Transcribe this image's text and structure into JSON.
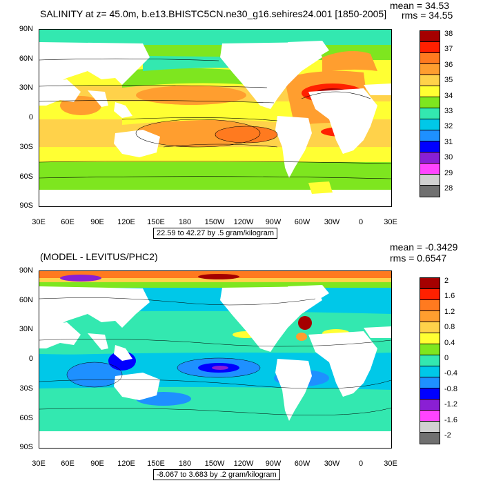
{
  "panels": [
    {
      "title": "SALINITY at z=  45.0m, b.e13.BHISTC5CN.ne30_g16.sehires24.001 [1850-2005]",
      "mean": "mean = 34.53",
      "rms": "rms = 34.55",
      "range": "22.59 to 42.27 by .5 gram/kilogram",
      "legend": {
        "labels": [
          "38",
          "37",
          "36",
          "35",
          "34",
          "33",
          "32",
          "31",
          "30",
          "29",
          "28"
        ],
        "colors": [
          "#a50000",
          "#ff2000",
          "#ff7a1f",
          "#ff9e2f",
          "#ffd24a",
          "#ffff33",
          "#7ee61f",
          "#33e8b0",
          "#00c8e8",
          "#1e90ff",
          "#0000ff",
          "#8a1fd4",
          "#ff44ff",
          "#d0d0d0",
          "#707070"
        ]
      }
    },
    {
      "title": "(MODEL - LEVITUS/PHC2)",
      "mean": "mean = -0.3429",
      "rms": "rms = 0.6547",
      "range": "-8.067 to 3.683 by .2 gram/kilogram",
      "legend": {
        "labels": [
          "2",
          "1.6",
          "1.2",
          "0.8",
          "0.4",
          "0",
          "-0.4",
          "-0.8",
          "-1.2",
          "-1.6",
          "-2"
        ],
        "colors": [
          "#a50000",
          "#ff2000",
          "#ff7a1f",
          "#ff9e2f",
          "#ffd24a",
          "#ffff33",
          "#7ee61f",
          "#33e8b0",
          "#00c8e8",
          "#1e90ff",
          "#0000ff",
          "#8a1fd4",
          "#ff44ff",
          "#d0d0d0",
          "#707070"
        ]
      }
    }
  ],
  "axes": {
    "lat_labels": [
      "90N",
      "60N",
      "30N",
      "0",
      "30S",
      "60S",
      "90S"
    ],
    "lon_labels": [
      "30E",
      "60E",
      "90E",
      "120E",
      "150E",
      "180",
      "150W",
      "120W",
      "90W",
      "60W",
      "30W",
      "0",
      "30E"
    ]
  }
}
